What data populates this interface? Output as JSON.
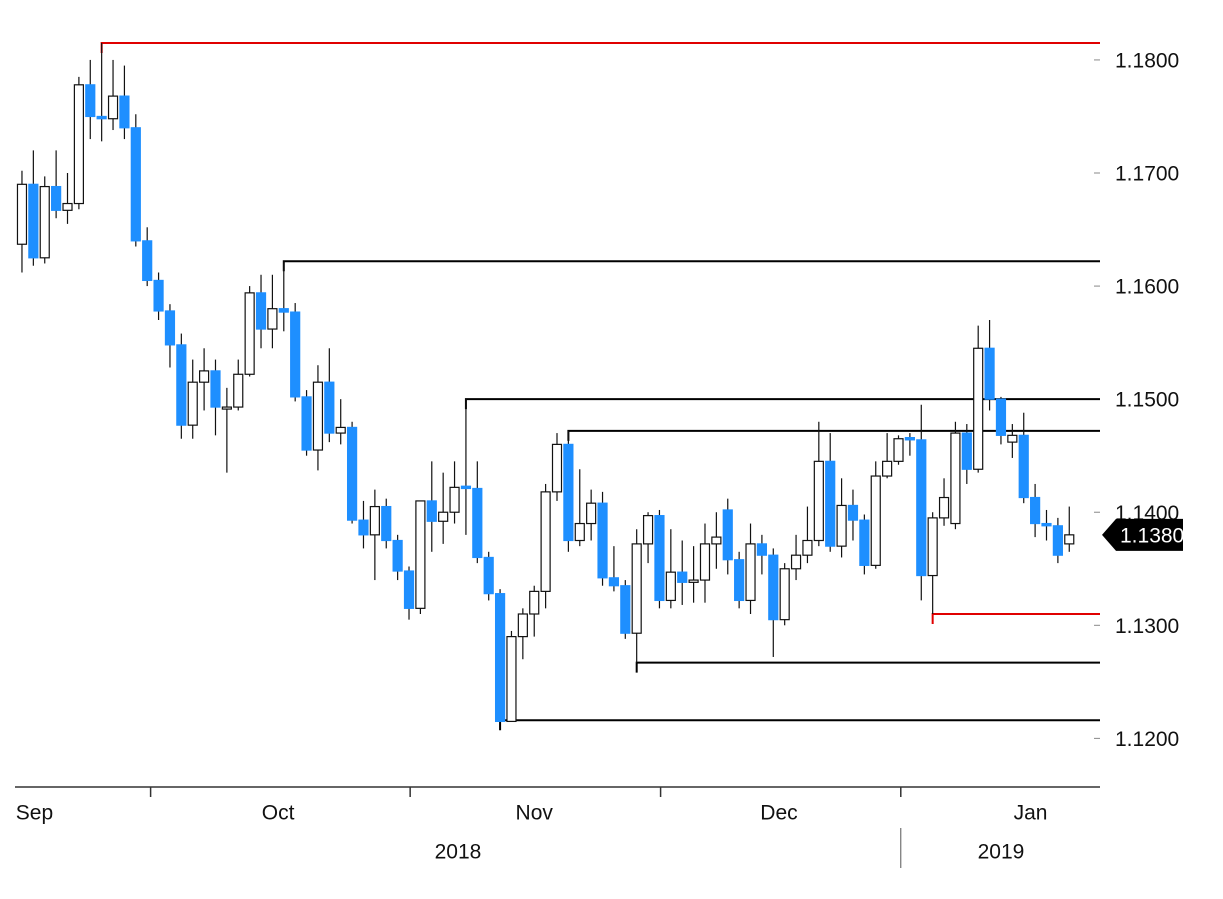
{
  "chart_data": {
    "type": "candlestick",
    "up_color": "#ffffff",
    "down_color": "#1e8fff",
    "open": [
      1.1637,
      1.169,
      1.1625,
      1.1688,
      1.1667,
      1.1673,
      1.1778,
      1.175,
      1.1748,
      1.1768,
      1.174,
      1.164,
      1.1605,
      1.1578,
      1.1548,
      1.1477,
      1.1515,
      1.1525,
      1.1492,
      1.1493,
      1.1522,
      1.1594,
      1.1562,
      1.158,
      1.1577,
      1.1502,
      1.1455,
      1.1515,
      1.147,
      1.1475,
      1.1393,
      1.138,
      1.1405,
      1.1375,
      1.1348,
      1.1315,
      1.141,
      1.1392,
      1.14,
      1.1423,
      1.1421,
      1.136,
      1.1328,
      1.1215,
      1.129,
      1.131,
      1.133,
      1.1418,
      1.146,
      1.1375,
      1.139,
      1.1408,
      1.1342,
      1.1335,
      1.1293,
      1.1372,
      1.1397,
      1.1322,
      1.1347,
      1.1338,
      1.134,
      1.1372,
      1.1402,
      1.1358,
      1.1322,
      1.1372,
      1.1362,
      1.1305,
      1.135,
      1.1362,
      1.1375,
      1.1445,
      1.137,
      1.1406,
      1.1393,
      1.1353,
      1.1432,
      1.1445,
      1.1466,
      1.1464,
      1.1344,
      1.1395,
      1.139,
      1.147,
      1.1438,
      1.1545,
      1.15,
      1.1462,
      1.1468,
      1.1413,
      1.139,
      1.1388,
      1.1372
    ],
    "high": [
      1.1702,
      1.172,
      1.1697,
      1.172,
      1.17,
      1.1785,
      1.18,
      1.1815,
      1.18,
      1.1795,
      1.1752,
      1.1652,
      1.1612,
      1.1584,
      1.1558,
      1.1535,
      1.1545,
      1.1535,
      1.151,
      1.1535,
      1.16,
      1.161,
      1.161,
      1.1622,
      1.1585,
      1.1508,
      1.153,
      1.1545,
      1.15,
      1.148,
      1.141,
      1.142,
      1.1412,
      1.138,
      1.1352,
      1.141,
      1.1445,
      1.1435,
      1.1445,
      1.15,
      1.1445,
      1.1365,
      1.1332,
      1.1295,
      1.1315,
      1.1335,
      1.1425,
      1.147,
      1.1472,
      1.1438,
      1.142,
      1.1418,
      1.137,
      1.134,
      1.1385,
      1.14,
      1.1402,
      1.1385,
      1.1375,
      1.137,
      1.139,
      1.14,
      1.1412,
      1.1365,
      1.139,
      1.138,
      1.1368,
      1.1355,
      1.138,
      1.1405,
      1.148,
      1.147,
      1.143,
      1.142,
      1.1398,
      1.1445,
      1.147,
      1.1468,
      1.147,
      1.1495,
      1.14,
      1.143,
      1.148,
      1.1478,
      1.1565,
      1.157,
      1.1502,
      1.1478,
      1.1488,
      1.1425,
      1.1402,
      1.1395,
      1.1405
    ],
    "low": [
      1.1612,
      1.1618,
      1.162,
      1.166,
      1.1655,
      1.1668,
      1.173,
      1.1728,
      1.1738,
      1.173,
      1.1635,
      1.16,
      1.157,
      1.1528,
      1.1465,
      1.1465,
      1.149,
      1.1468,
      1.1435,
      1.149,
      1.152,
      1.1545,
      1.1545,
      1.156,
      1.1498,
      1.145,
      1.1437,
      1.1462,
      1.146,
      1.139,
      1.1368,
      1.134,
      1.1368,
      1.134,
      1.1305,
      1.131,
      1.1365,
      1.1372,
      1.139,
      1.138,
      1.1355,
      1.1322,
      1.1215,
      1.1215,
      1.127,
      1.129,
      1.1315,
      1.141,
      1.1365,
      1.137,
      1.1375,
      1.1335,
      1.133,
      1.1288,
      1.1267,
      1.1355,
      1.1315,
      1.1315,
      1.1318,
      1.132,
      1.132,
      1.135,
      1.1345,
      1.1315,
      1.131,
      1.1345,
      1.1272,
      1.13,
      1.134,
      1.1355,
      1.137,
      1.1365,
      1.136,
      1.1375,
      1.1345,
      1.135,
      1.143,
      1.1442,
      1.145,
      1.1322,
      1.131,
      1.1388,
      1.1385,
      1.1425,
      1.1435,
      1.149,
      1.146,
      1.1448,
      1.1408,
      1.1378,
      1.1375,
      1.1355,
      1.1365
    ],
    "close": [
      1.169,
      1.1625,
      1.1688,
      1.1667,
      1.1673,
      1.1778,
      1.175,
      1.1748,
      1.1768,
      1.174,
      1.164,
      1.1605,
      1.1578,
      1.1548,
      1.1477,
      1.1515,
      1.1525,
      1.1493,
      1.1493,
      1.1522,
      1.1594,
      1.1562,
      1.158,
      1.1577,
      1.1502,
      1.1455,
      1.1515,
      1.147,
      1.1475,
      1.1393,
      1.138,
      1.1405,
      1.1375,
      1.1348,
      1.1315,
      1.141,
      1.1392,
      1.14,
      1.1422,
      1.1421,
      1.136,
      1.1328,
      1.1215,
      1.129,
      1.131,
      1.133,
      1.1418,
      1.146,
      1.1375,
      1.139,
      1.1408,
      1.1342,
      1.1335,
      1.1293,
      1.1372,
      1.1397,
      1.1322,
      1.1347,
      1.1338,
      1.134,
      1.1372,
      1.1378,
      1.1358,
      1.1322,
      1.1372,
      1.1362,
      1.1305,
      1.135,
      1.1362,
      1.1375,
      1.1445,
      1.137,
      1.1406,
      1.1393,
      1.1353,
      1.1432,
      1.1445,
      1.1465,
      1.1464,
      1.1344,
      1.1395,
      1.1413,
      1.147,
      1.1438,
      1.1545,
      1.15,
      1.1468,
      1.1468,
      1.1413,
      1.139,
      1.1388,
      1.1362,
      1.138
    ],
    "levels": [
      {
        "value": 1.1815,
        "from": 7,
        "color": "#e00000"
      },
      {
        "value": 1.1622,
        "from": 23,
        "color": "#000000"
      },
      {
        "value": 1.15,
        "from": 39,
        "color": "#000000"
      },
      {
        "value": 1.1472,
        "from": 48,
        "color": "#000000"
      },
      {
        "value": 1.131,
        "from": 80,
        "color": "#e00000"
      },
      {
        "value": 1.1267,
        "from": 54,
        "color": "#000000"
      },
      {
        "value": 1.1216,
        "from": 42,
        "color": "#000000"
      }
    ],
    "last_price": {
      "value": 1.138,
      "label": "1.1380"
    },
    "xlim": [
      -1.93,
      94.7
    ],
    "xticks": [
      {
        "value": 1.1,
        "label": "Sep"
      },
      {
        "value": 22.5,
        "label": "Oct"
      },
      {
        "value": 45,
        "label": "Nov"
      },
      {
        "value": 66.5,
        "label": "Dec"
      },
      {
        "value": 88.6,
        "label": "Jan"
      }
    ],
    "xminor": [
      11.3,
      34.1,
      56.1,
      77.2
    ],
    "year_labels": [
      {
        "value": 38.3,
        "label": "2018"
      },
      {
        "value": 86,
        "label": "2019"
      }
    ],
    "year_break": 77.2,
    "ylim": [
      1.1157,
      1.1853
    ],
    "yticks": [
      {
        "value": 1.12,
        "label": "1.1200"
      },
      {
        "value": 1.13,
        "label": "1.1300"
      },
      {
        "value": 1.14,
        "label": "1.1400"
      },
      {
        "value": 1.15,
        "label": "1.1500"
      },
      {
        "value": 1.16,
        "label": "1.1600"
      },
      {
        "value": 1.17,
        "label": "1.1700"
      },
      {
        "value": 1.18,
        "label": "1.1800"
      }
    ]
  }
}
